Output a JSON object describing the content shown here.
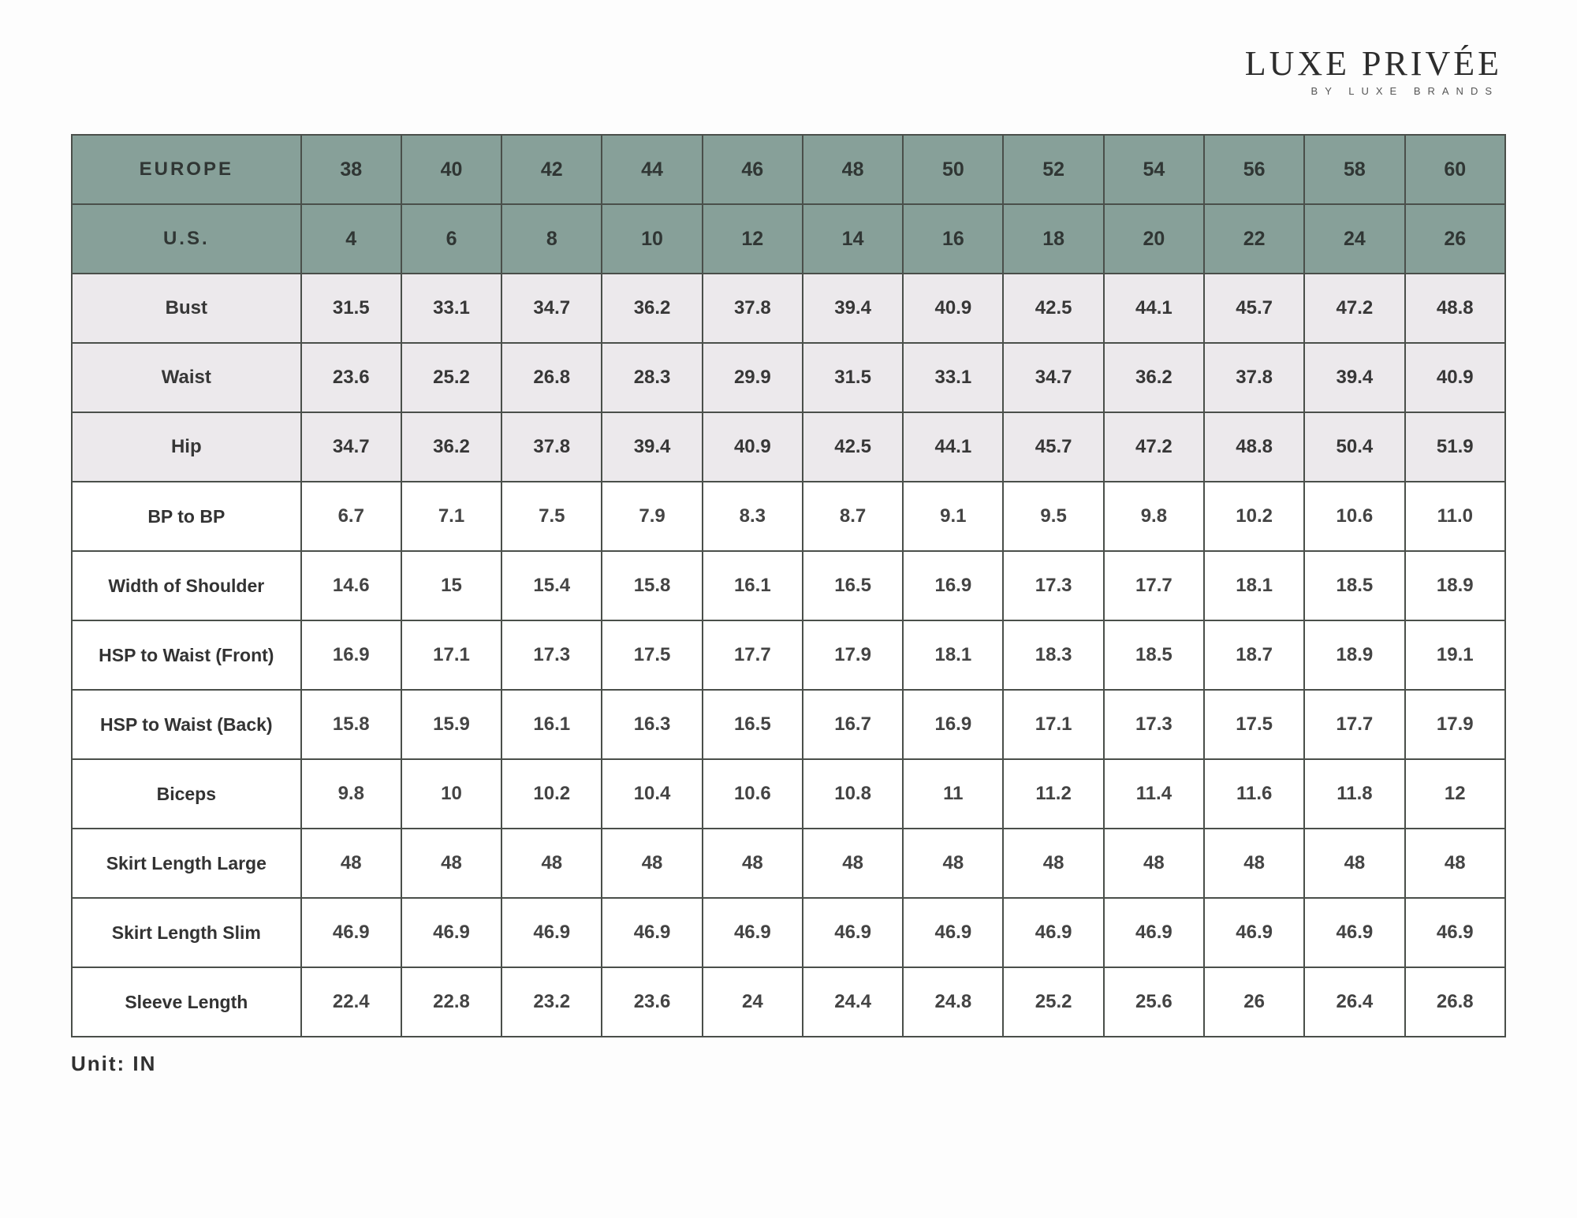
{
  "brand": {
    "main": "LUXE PRIVÉE",
    "sub": "BY LUXE BRANDS"
  },
  "unit_label": "Unit: IN",
  "colors": {
    "header_bg": "#87a099",
    "border": "#4a4f4a",
    "row_light_bg": "#ece9ec",
    "row_white_bg": "#ffffff",
    "page_bg": "#fdfdfd",
    "text": "#333333"
  },
  "table": {
    "header_rows": [
      {
        "label": "EUROPE",
        "values": [
          "38",
          "40",
          "42",
          "44",
          "46",
          "48",
          "50",
          "52",
          "54",
          "56",
          "58",
          "60"
        ]
      },
      {
        "label": "U.S.",
        "values": [
          "4",
          "6",
          "8",
          "10",
          "12",
          "14",
          "16",
          "18",
          "20",
          "22",
          "24",
          "26"
        ]
      }
    ],
    "light_rows": [
      {
        "label": "Bust",
        "values": [
          "31.5",
          "33.1",
          "34.7",
          "36.2",
          "37.8",
          "39.4",
          "40.9",
          "42.5",
          "44.1",
          "45.7",
          "47.2",
          "48.8"
        ]
      },
      {
        "label": "Waist",
        "values": [
          "23.6",
          "25.2",
          "26.8",
          "28.3",
          "29.9",
          "31.5",
          "33.1",
          "34.7",
          "36.2",
          "37.8",
          "39.4",
          "40.9"
        ]
      },
      {
        "label": "Hip",
        "values": [
          "34.7",
          "36.2",
          "37.8",
          "39.4",
          "40.9",
          "42.5",
          "44.1",
          "45.7",
          "47.2",
          "48.8",
          "50.4",
          "51.9"
        ]
      }
    ],
    "white_rows": [
      {
        "label": "BP to BP",
        "values": [
          "6.7",
          "7.1",
          "7.5",
          "7.9",
          "8.3",
          "8.7",
          "9.1",
          "9.5",
          "9.8",
          "10.2",
          "10.6",
          "11.0"
        ]
      },
      {
        "label": "Width of Shoulder",
        "values": [
          "14.6",
          "15",
          "15.4",
          "15.8",
          "16.1",
          "16.5",
          "16.9",
          "17.3",
          "17.7",
          "18.1",
          "18.5",
          "18.9"
        ]
      },
      {
        "label": "HSP to Waist (Front)",
        "values": [
          "16.9",
          "17.1",
          "17.3",
          "17.5",
          "17.7",
          "17.9",
          "18.1",
          "18.3",
          "18.5",
          "18.7",
          "18.9",
          "19.1"
        ]
      },
      {
        "label": "HSP to Waist (Back)",
        "values": [
          "15.8",
          "15.9",
          "16.1",
          "16.3",
          "16.5",
          "16.7",
          "16.9",
          "17.1",
          "17.3",
          "17.5",
          "17.7",
          "17.9"
        ]
      },
      {
        "label": "Biceps",
        "values": [
          "9.8",
          "10",
          "10.2",
          "10.4",
          "10.6",
          "10.8",
          "11",
          "11.2",
          "11.4",
          "11.6",
          "11.8",
          "12"
        ]
      },
      {
        "label": "Skirt Length Large",
        "values": [
          "48",
          "48",
          "48",
          "48",
          "48",
          "48",
          "48",
          "48",
          "48",
          "48",
          "48",
          "48"
        ]
      },
      {
        "label": "Skirt Length Slim",
        "values": [
          "46.9",
          "46.9",
          "46.9",
          "46.9",
          "46.9",
          "46.9",
          "46.9",
          "46.9",
          "46.9",
          "46.9",
          "46.9",
          "46.9"
        ]
      },
      {
        "label": "Sleeve Length",
        "values": [
          "22.4",
          "22.8",
          "23.2",
          "23.6",
          "24",
          "24.4",
          "24.8",
          "25.2",
          "25.6",
          "26",
          "26.4",
          "26.8"
        ]
      }
    ]
  }
}
